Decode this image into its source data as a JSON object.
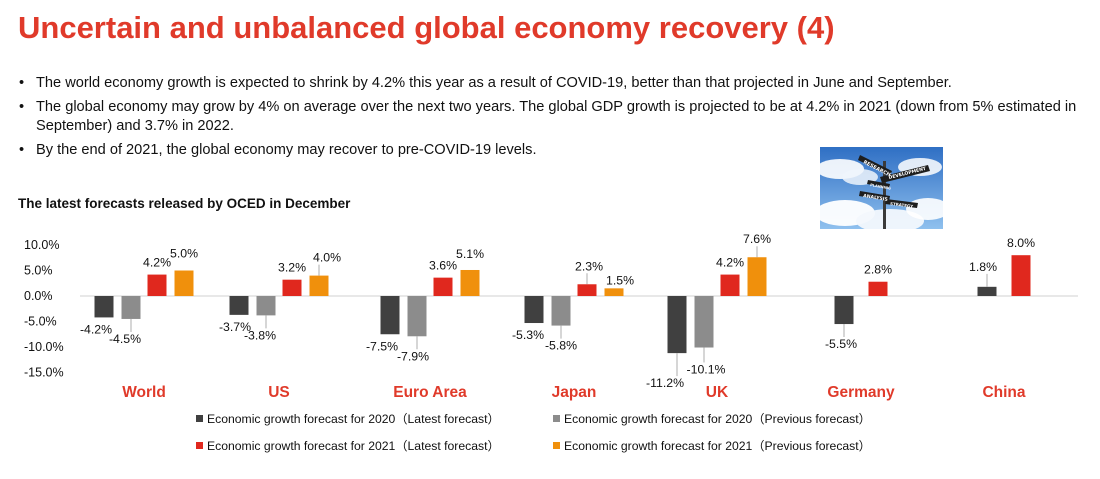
{
  "title": "Uncertain and unbalanced global economy recovery (4)",
  "bullets": [
    "The world economy growth is expected to shrink by 4.2% this year as a result of COVID-19, better than that projected in June and September.",
    "The global economy may grow by 4% on average over the next two years. The global GDP growth is projected to be at 4.2% in 2021 (down from 5% estimated in September) and 3.7% in 2022.",
    "By the end of 2021, the global economy may recover to pre-COVID-19 levels."
  ],
  "chart_subtitle": "The latest forecasts released by OCED in December",
  "photo": {
    "signs": [
      "RESEARCH",
      "DEVELOPMENT",
      "PLANNING",
      "ANALYSIS",
      "STRATEGY"
    ]
  },
  "colors": {
    "title": "#e03a2a",
    "category_label": "#e03a2a",
    "latest_2020": "#404040",
    "previous_2020": "#8c8c8c",
    "latest_2021": "#e0281e",
    "previous_2021": "#f0900c"
  },
  "chart_data": {
    "type": "bar",
    "title": "The latest forecasts released by OCED in December",
    "categories": [
      "World",
      "US",
      "Euro Area",
      "Japan",
      "UK",
      "Germany",
      "China"
    ],
    "ylim": [
      -15,
      10
    ],
    "yticks": [
      "10.0%",
      "5.0%",
      "0.0%",
      "-5.0%",
      "-10.0%",
      "-15.0%"
    ],
    "ytick_values": [
      10,
      5,
      0,
      -5,
      -10,
      -15
    ],
    "grid": false,
    "legend_position": "bottom",
    "series": [
      {
        "name": "Economic growth forecast for 2020（Latest forecast）",
        "values": [
          -4.2,
          -3.7,
          -7.5,
          -5.3,
          -11.2,
          -5.5,
          1.8
        ],
        "labels": [
          "-4.2%",
          "-3.7%",
          "-7.5%",
          "-5.3%",
          "-11.2%",
          "-5.5%",
          "1.8%"
        ]
      },
      {
        "name": "Economic growth forecast for 2020（Previous forecast）",
        "values": [
          -4.5,
          -3.8,
          -7.9,
          -5.8,
          -10.1,
          null,
          null
        ],
        "labels": [
          "-4.5%",
          "-3.8%",
          "-7.9%",
          "-5.8%",
          "-10.1%",
          null,
          null
        ]
      },
      {
        "name": "Economic growth forecast for 2021（Latest forecast）",
        "values": [
          4.2,
          3.2,
          3.6,
          2.3,
          4.2,
          2.8,
          8.0
        ],
        "labels": [
          "4.2%",
          "3.2%",
          "3.6%",
          "2.3%",
          "4.2%",
          "2.8%",
          "8.0%"
        ]
      },
      {
        "name": "Economic growth forecast for 2021（Previous forecast）",
        "values": [
          5.0,
          4.0,
          5.1,
          1.5,
          7.6,
          null,
          null
        ],
        "labels": [
          "5.0%",
          "4.0%",
          "5.1%",
          "1.5%",
          "7.6%",
          null,
          null
        ]
      }
    ]
  }
}
